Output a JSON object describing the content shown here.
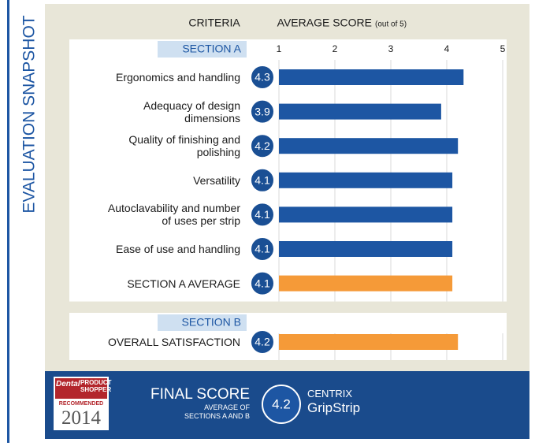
{
  "chart_data": {
    "type": "bar",
    "title": "EVALUATION SNAPSHOT",
    "category_header": "CRITERIA",
    "xlabel": "AVERAGE SCORE",
    "xlabel_note": "(out of 5)",
    "xlim": [
      1,
      5
    ],
    "xticks": [
      1,
      2,
      3,
      4,
      5
    ],
    "grid": true,
    "sections": [
      {
        "name": "SECTION A",
        "categories": [
          "Ergonomics and handling",
          "Adequacy of design\ndimensions",
          "Quality of finishing and\npolishing",
          "Versatility",
          "Autoclavability and number\nof uses per strip",
          "Ease of use and handling",
          "SECTION A AVERAGE"
        ],
        "values": [
          4.3,
          3.9,
          4.2,
          4.1,
          4.1,
          4.1,
          4.1
        ],
        "colors": [
          "#1d56a3",
          "#1d56a3",
          "#1d56a3",
          "#1d56a3",
          "#1d56a3",
          "#1d56a3",
          "#f59a38"
        ]
      },
      {
        "name": "SECTION B",
        "categories": [
          "OVERALL SATISFACTION"
        ],
        "values": [
          4.2
        ],
        "colors": [
          "#f59a38"
        ]
      }
    ]
  },
  "footer": {
    "badge": {
      "brand": "Dental",
      "name": "PRODUCT\nSHOPPER",
      "status": "RECOMMENDED",
      "year": "2014"
    },
    "label": "FINAL SCORE",
    "note": "AVERAGE OF\nSECTIONS A AND B",
    "score": 4.2,
    "manufacturer": "CENTRIX",
    "product": "GripStrip"
  }
}
